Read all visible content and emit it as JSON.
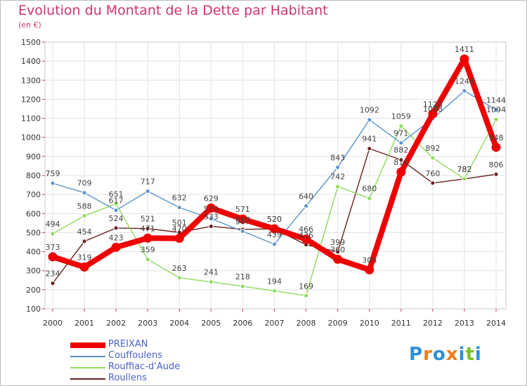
{
  "title": "Evolution du Montant de la Dette par Habitant",
  "subtitle": "(en €)",
  "logo": {
    "letters": [
      "P",
      "r",
      "o",
      "x",
      "i",
      "t",
      "i"
    ],
    "colors": [
      "#2f8fd6",
      "#f07d1a",
      "#2f8fd6",
      "#f07d1a",
      "#2f8fd6",
      "#7bbf2a",
      "#2f8fd6"
    ]
  },
  "chart_data": {
    "type": "line",
    "title": "Evolution du Montant de la Dette par Habitant",
    "ylabel": "(en €)",
    "x": [
      "2000",
      "2001",
      "2002",
      "2003",
      "2004",
      "2005",
      "2006",
      "2007",
      "2008",
      "2009",
      "2010",
      "2011",
      "2012",
      "2013",
      "2014"
    ],
    "ylim": [
      100,
      1500
    ],
    "yticks": [
      "100",
      "200",
      "300",
      "400",
      "500",
      "600",
      "700",
      "800",
      "900",
      "1000",
      "1100",
      "1200",
      "1300",
      "1400",
      "1500"
    ],
    "grid": true,
    "legend": "bottom-left",
    "series": [
      {
        "name": "Roullens",
        "color": "#6a1e1e",
        "values": [
          234,
          454,
          524,
          521,
          501,
          533,
          517,
          520,
          436,
          399,
          941,
          882,
          760,
          782,
          806
        ],
        "labels": [
          "234",
          "454",
          "524",
          "521",
          "501",
          "533",
          "517",
          "520",
          "436",
          "399",
          "941",
          "882",
          "760",
          "782",
          "806"
        ]
      },
      {
        "name": "Rouffiac-d'Aude",
        "color": "#8fda5a",
        "values": [
          494,
          588,
          651,
          359,
          263,
          241,
          218,
          194,
          169,
          742,
          680,
          1059,
          892,
          782,
          1094
        ],
        "labels": [
          "494",
          "588",
          "651",
          "359",
          "263",
          "241",
          "218",
          "194",
          "169",
          "742",
          "680",
          "1059",
          "892",
          "782",
          "1094"
        ]
      },
      {
        "name": "Couffoulens",
        "color": "#5b94cc",
        "values": [
          759,
          709,
          617,
          717,
          632,
          573,
          507,
          439,
          640,
          843,
          1092,
          971,
          1098,
          1244,
          1144
        ],
        "labels": [
          "759",
          "709",
          "617",
          "717",
          "632",
          "573",
          "507",
          "439",
          "640",
          "843",
          "1092",
          "971",
          "1098",
          "1244",
          "1144"
        ]
      },
      {
        "name": "PREIXAN",
        "color": "#ee0000",
        "values": [
          373,
          319,
          423,
          471,
          470,
          629,
          571,
          520,
          466,
          360,
          305,
          818,
          1123,
          1411,
          948
        ],
        "labels": [
          "373",
          "319",
          "423",
          "471",
          "470",
          "629",
          "571",
          "520",
          "466",
          "360",
          "305",
          "818",
          "1123",
          "1411",
          "948"
        ]
      }
    ],
    "legend_order": [
      "PREIXAN",
      "Couffoulens",
      "Rouffiac-d'Aude",
      "Roullens"
    ]
  }
}
